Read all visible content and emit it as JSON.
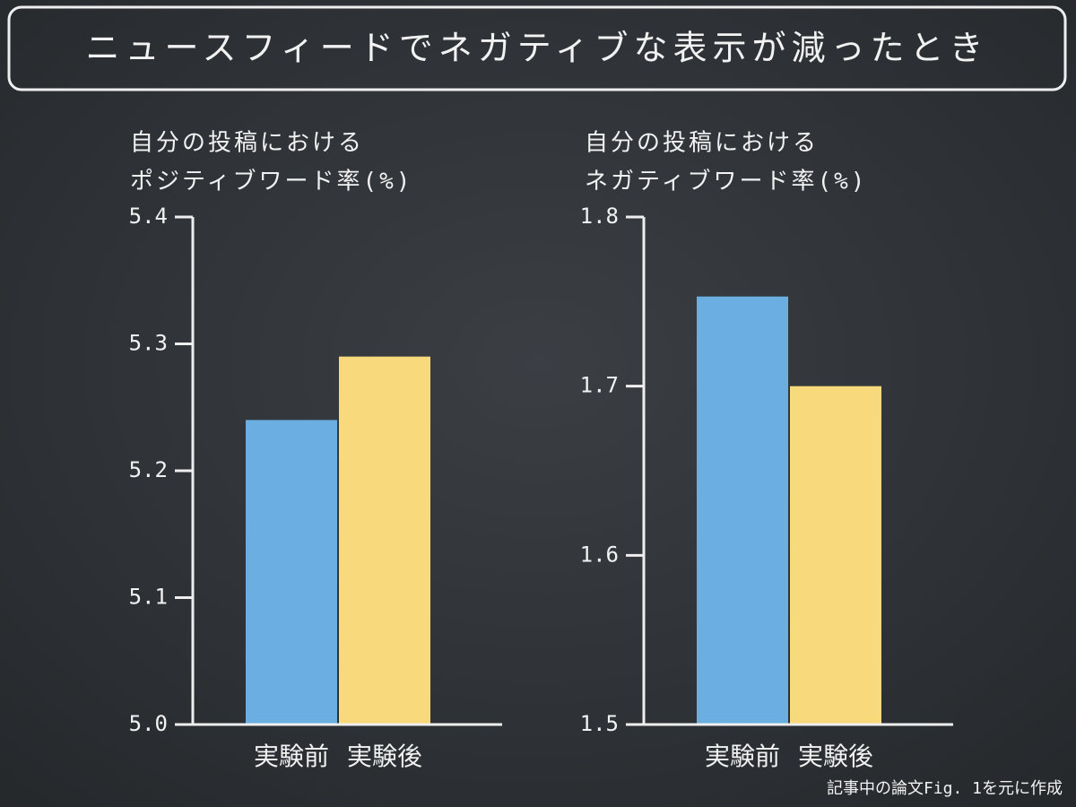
{
  "title": "ニュースフィードでネガティブな表示が減ったとき",
  "footnote": "記事中の論文Fig. 1を元に作成",
  "chart_data": [
    {
      "type": "bar",
      "ylabel": [
        "自分の投稿における",
        "ポジティブワード率(%)"
      ],
      "categories": [
        "実験前",
        "実験後"
      ],
      "values": [
        5.24,
        5.29
      ],
      "colors": [
        "#6aaee2",
        "#f8da7c"
      ],
      "ylim": [
        5.0,
        5.4
      ],
      "yticks": [
        {
          "value": 5.0,
          "label": "5.0"
        },
        5.1,
        5.2,
        5.3,
        5.4
      ]
    },
    {
      "type": "bar",
      "ylabel": [
        "自分の投稿における",
        "ネガティブワード率(%)"
      ],
      "categories": [
        "実験前",
        "実験後"
      ],
      "values": [
        1.753,
        1.7
      ],
      "colors": [
        "#6aaee2",
        "#f8da7c"
      ],
      "ylim": [
        1.5,
        1.8
      ],
      "yticks": [
        1.5,
        1.6,
        1.7,
        1.8
      ]
    }
  ]
}
